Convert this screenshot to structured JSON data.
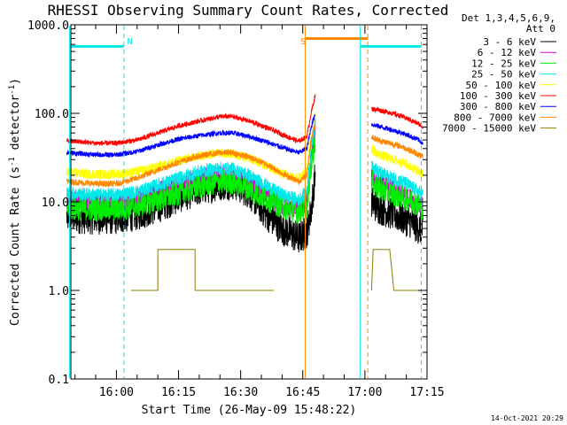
{
  "chart_data": {
    "type": "line",
    "title": "RHESSI Observing Summary Count Rates, Corrected",
    "xlabel": "Start Time (26-May-09 15:48:22)",
    "ylabel_main": "Corrected Count Rate (s",
    "ylabel_sup": "-1",
    "ylabel_tail": " detector",
    "ylabel_end": ")",
    "yscale": "log",
    "ylim": [
      0.1,
      1000
    ],
    "xlim_min": [
      -11,
      75
    ],
    "x_unit": "minutes after 16:00",
    "y_ticks": [
      {
        "v": 1000,
        "label": "1000.0"
      },
      {
        "v": 100,
        "label": "100.0"
      },
      {
        "v": 10,
        "label": "10.0"
      },
      {
        "v": 1,
        "label": "1.0"
      },
      {
        "v": 0.1,
        "label": "0.1"
      }
    ],
    "x_ticks": [
      {
        "t": 0,
        "label": "16:00"
      },
      {
        "t": 15,
        "label": "16:15"
      },
      {
        "t": 30,
        "label": "16:30"
      },
      {
        "t": 45,
        "label": "16:45"
      },
      {
        "t": 60,
        "label": "17:00"
      },
      {
        "t": 75,
        "label": "17:15"
      }
    ],
    "legend_header": [
      "Det 1,3,4,5,6,9,",
      "Att 0"
    ],
    "legend_position": "top-right, outside plot",
    "series": [
      {
        "name": "3 - 6 keV",
        "color": "#000000",
        "day1": [
          [
            -12,
            6.8
          ],
          [
            -5,
            6.6
          ],
          [
            0,
            6.6
          ],
          [
            5,
            7.3
          ],
          [
            10,
            8.8
          ],
          [
            15,
            11.5
          ],
          [
            20,
            14
          ],
          [
            25,
            16
          ],
          [
            28,
            16.5
          ],
          [
            32,
            13
          ],
          [
            36,
            7.5
          ],
          [
            40,
            5
          ],
          [
            44,
            3.9
          ],
          [
            46,
            4.6
          ],
          [
            47,
            8
          ],
          [
            48,
            20
          ]
        ],
        "day2": [
          [
            61.6,
            10
          ],
          [
            63,
            8.8
          ],
          [
            66,
            7.6
          ],
          [
            69,
            6.6
          ],
          [
            71,
            6
          ],
          [
            73,
            5.1
          ],
          [
            74,
            4.7
          ]
        ]
      },
      {
        "name": "6 - 12 keV",
        "color": "#cc00cc",
        "day1": [
          [
            -12,
            10.5
          ],
          [
            -5,
            10
          ],
          [
            0,
            10
          ],
          [
            5,
            11
          ],
          [
            10,
            13
          ],
          [
            15,
            16
          ],
          [
            20,
            18.5
          ],
          [
            25,
            20
          ],
          [
            28,
            19.5
          ],
          [
            32,
            16.5
          ],
          [
            36,
            12
          ],
          [
            40,
            9
          ],
          [
            44,
            8
          ],
          [
            46,
            10
          ],
          [
            47,
            30
          ],
          [
            48,
            60
          ]
        ],
        "day2": [
          [
            61.6,
            20
          ],
          [
            63,
            17
          ],
          [
            66,
            14.5
          ],
          [
            69,
            12.5
          ],
          [
            71,
            11
          ],
          [
            73,
            9.5
          ],
          [
            74,
            8.8
          ]
        ]
      },
      {
        "name": "12 - 25 keV",
        "color": "#00ee00",
        "day1": [
          [
            -12,
            8.5
          ],
          [
            -5,
            8.3
          ],
          [
            0,
            8.3
          ],
          [
            5,
            9
          ],
          [
            10,
            10.5
          ],
          [
            15,
            12.5
          ],
          [
            20,
            15
          ],
          [
            25,
            17
          ],
          [
            28,
            16.5
          ],
          [
            32,
            14
          ],
          [
            36,
            11
          ],
          [
            40,
            8.8
          ],
          [
            44,
            7.8
          ],
          [
            46,
            9
          ],
          [
            47,
            25
          ],
          [
            48,
            50
          ]
        ],
        "day2": [
          [
            61.6,
            17
          ],
          [
            63,
            14.5
          ],
          [
            66,
            12.5
          ],
          [
            69,
            11.5
          ],
          [
            71,
            10.5
          ],
          [
            73,
            9.2
          ],
          [
            74,
            8.5
          ]
        ]
      },
      {
        "name": "25 - 50 keV",
        "color": "#00e8e8",
        "day1": [
          [
            -12,
            12.5
          ],
          [
            -5,
            12
          ],
          [
            0,
            12
          ],
          [
            5,
            13
          ],
          [
            10,
            15.5
          ],
          [
            15,
            18.5
          ],
          [
            20,
            22
          ],
          [
            25,
            24
          ],
          [
            28,
            23.5
          ],
          [
            32,
            20
          ],
          [
            36,
            15.5
          ],
          [
            40,
            12
          ],
          [
            44,
            10.5
          ],
          [
            46,
            13
          ],
          [
            47,
            40
          ],
          [
            48,
            80
          ]
        ],
        "day2": [
          [
            61.6,
            27
          ],
          [
            63,
            22
          ],
          [
            66,
            19
          ],
          [
            69,
            17
          ],
          [
            71,
            15
          ],
          [
            73,
            13
          ],
          [
            74,
            12
          ]
        ]
      },
      {
        "name": "50 - 100 keV",
        "color": "#ffff00",
        "day1": [
          [
            -12,
            21.5
          ],
          [
            -5,
            20.5
          ],
          [
            0,
            20.5
          ],
          [
            5,
            22
          ],
          [
            10,
            25
          ],
          [
            15,
            29
          ],
          [
            20,
            33
          ],
          [
            25,
            36
          ],
          [
            28,
            35
          ],
          [
            32,
            31.5
          ],
          [
            36,
            26
          ],
          [
            40,
            21
          ],
          [
            44,
            18.5
          ],
          [
            46,
            22
          ],
          [
            47,
            70
          ],
          [
            48,
            100
          ]
        ],
        "day2": [
          [
            61.6,
            40
          ],
          [
            63,
            35
          ],
          [
            66,
            31
          ],
          [
            69,
            28
          ],
          [
            71,
            25
          ],
          [
            73,
            22
          ],
          [
            74,
            21
          ]
        ]
      },
      {
        "name": "100 - 300 keV",
        "color": "#ff0000",
        "day1": [
          [
            -12,
            49
          ],
          [
            -5,
            46
          ],
          [
            0,
            46
          ],
          [
            5,
            50
          ],
          [
            10,
            60
          ],
          [
            15,
            72
          ],
          [
            20,
            82
          ],
          [
            25,
            92
          ],
          [
            28,
            92
          ],
          [
            32,
            82
          ],
          [
            36,
            70
          ],
          [
            40,
            58
          ],
          [
            44,
            48
          ],
          [
            46,
            55
          ],
          [
            47,
            100
          ],
          [
            48,
            160
          ]
        ],
        "day2": [
          [
            61.6,
            112
          ],
          [
            63,
            110
          ],
          [
            66,
            102
          ],
          [
            69,
            92
          ],
          [
            71,
            84
          ],
          [
            73,
            76
          ],
          [
            74,
            70
          ]
        ]
      },
      {
        "name": "300 - 800 keV",
        "color": "#0000ff",
        "day1": [
          [
            -12,
            36
          ],
          [
            -5,
            34
          ],
          [
            0,
            34
          ],
          [
            5,
            37
          ],
          [
            10,
            44
          ],
          [
            15,
            51
          ],
          [
            20,
            56
          ],
          [
            25,
            60
          ],
          [
            28,
            60
          ],
          [
            32,
            55
          ],
          [
            36,
            48
          ],
          [
            40,
            41
          ],
          [
            44,
            36
          ],
          [
            46,
            40
          ],
          [
            47,
            70
          ],
          [
            48,
            100
          ]
        ],
        "day2": [
          [
            61.6,
            75
          ],
          [
            63,
            72
          ],
          [
            66,
            66
          ],
          [
            69,
            60
          ],
          [
            71,
            55
          ],
          [
            73,
            50
          ],
          [
            74,
            46
          ]
        ]
      },
      {
        "name": "800 - 7000 keV",
        "color": "#ff8800",
        "day1": [
          [
            -12,
            17
          ],
          [
            -5,
            16
          ],
          [
            0,
            16
          ],
          [
            5,
            18.5
          ],
          [
            10,
            23
          ],
          [
            15,
            28
          ],
          [
            20,
            33
          ],
          [
            25,
            36
          ],
          [
            28,
            36
          ],
          [
            32,
            32
          ],
          [
            36,
            27
          ],
          [
            40,
            21
          ],
          [
            44,
            17
          ],
          [
            46,
            20
          ],
          [
            47,
            50
          ],
          [
            48,
            80
          ]
        ],
        "day2": [
          [
            61.6,
            55
          ],
          [
            63,
            50
          ],
          [
            66,
            46
          ],
          [
            69,
            42
          ],
          [
            71,
            38
          ],
          [
            73,
            34
          ],
          [
            74,
            32
          ]
        ]
      },
      {
        "name": "7000 - 15000 keV",
        "color": "#8b8000",
        "day1": [
          [
            3.5,
            1
          ],
          [
            10,
            1
          ],
          [
            10,
            2.9
          ],
          [
            19,
            2.9
          ],
          [
            19,
            1
          ],
          [
            38,
            1
          ]
        ],
        "day2": [
          [
            61.6,
            1
          ],
          [
            62,
            2.9
          ],
          [
            66,
            2.9
          ],
          [
            67,
            1
          ],
          [
            73,
            1
          ]
        ]
      }
    ],
    "annotations": [
      {
        "text": "N",
        "t": 2.6,
        "color": "#00e8e8"
      },
      {
        "text": "S",
        "t": 44.4,
        "color": "#ff8800"
      }
    ],
    "night_markers": [
      {
        "t": -11.3,
        "style": "solid",
        "color": "#00e8e8"
      },
      {
        "t": 1.8,
        "style": "dashed",
        "color": "#00e8e8"
      },
      {
        "t": 45.6,
        "style": "solid",
        "color": "#ff8800"
      },
      {
        "t": 58.9,
        "style": "solid",
        "color": "#00e8e8"
      },
      {
        "t": 60.7,
        "style": "dashed",
        "color": "#ff8800"
      },
      {
        "t": 73.6,
        "style": "dashed",
        "color": "#00e8e8"
      }
    ],
    "flag_bars": [
      {
        "t0": -11.3,
        "t1": 1.8,
        "y": 570,
        "color": "#00e8e8"
      },
      {
        "t0": 45.6,
        "t1": 60.7,
        "y": 700,
        "color": "#ff8800"
      },
      {
        "t0": 58.9,
        "t1": 73.6,
        "y": 570,
        "color": "#00e8e8"
      }
    ],
    "footer_date": "14-Oct-2021 20:29"
  }
}
